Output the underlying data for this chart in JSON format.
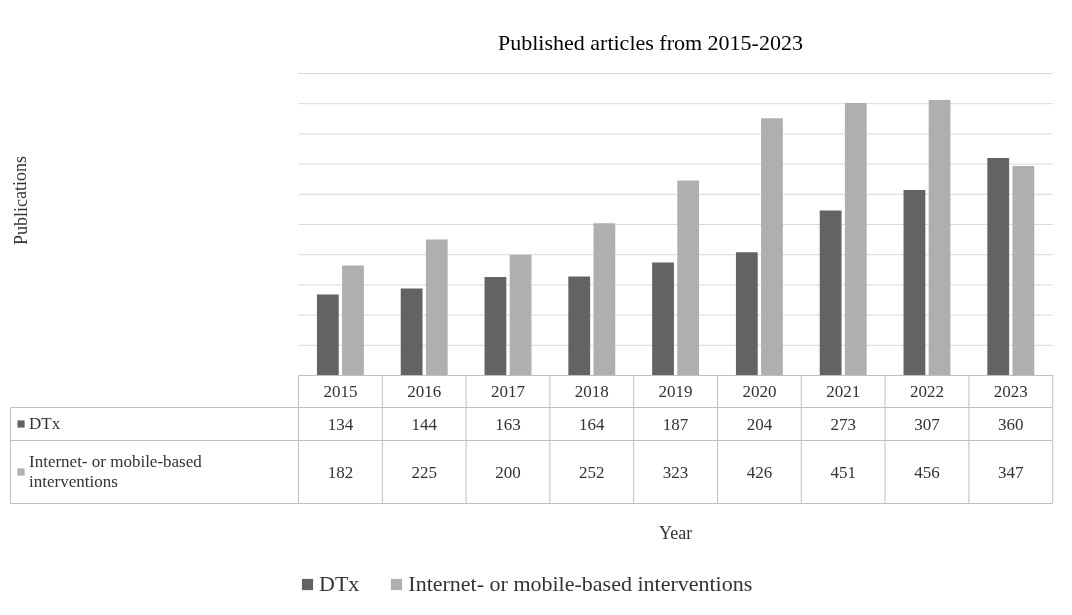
{
  "chart_data": {
    "type": "bar",
    "title": "Published articles from 2015-2023",
    "annotations": [
      "Publications",
      "Year"
    ],
    "categories": [
      "2015",
      "2016",
      "2017",
      "2018",
      "2019",
      "2020",
      "2021",
      "2022",
      "2023"
    ],
    "series": [
      {
        "name": "DTx",
        "color": "#636363",
        "values": [
          134,
          144,
          163,
          164,
          187,
          204,
          273,
          307,
          360
        ]
      },
      {
        "name": "Internet- or mobile-based interventions",
        "color": "#afafaf",
        "values": [
          182,
          225,
          200,
          252,
          323,
          426,
          451,
          456,
          347
        ]
      }
    ],
    "ylim": [
      0,
      500
    ],
    "yticks": [
      {
        "value": 0,
        "label": null
      },
      {
        "value": 50,
        "label": null
      },
      {
        "value": 100,
        "label": null
      },
      {
        "value": 150,
        "label": null
      },
      {
        "value": 200,
        "label": null
      },
      {
        "value": 250,
        "label": null
      },
      {
        "value": 300,
        "label": null
      },
      {
        "value": 350,
        "label": null
      },
      {
        "value": 400,
        "label": null
      },
      {
        "value": 450,
        "label": null
      },
      {
        "value": 500,
        "label": null
      }
    ],
    "grid": "y",
    "legend": "bottom",
    "data_labels": true,
    "tick_labels": "x"
  }
}
